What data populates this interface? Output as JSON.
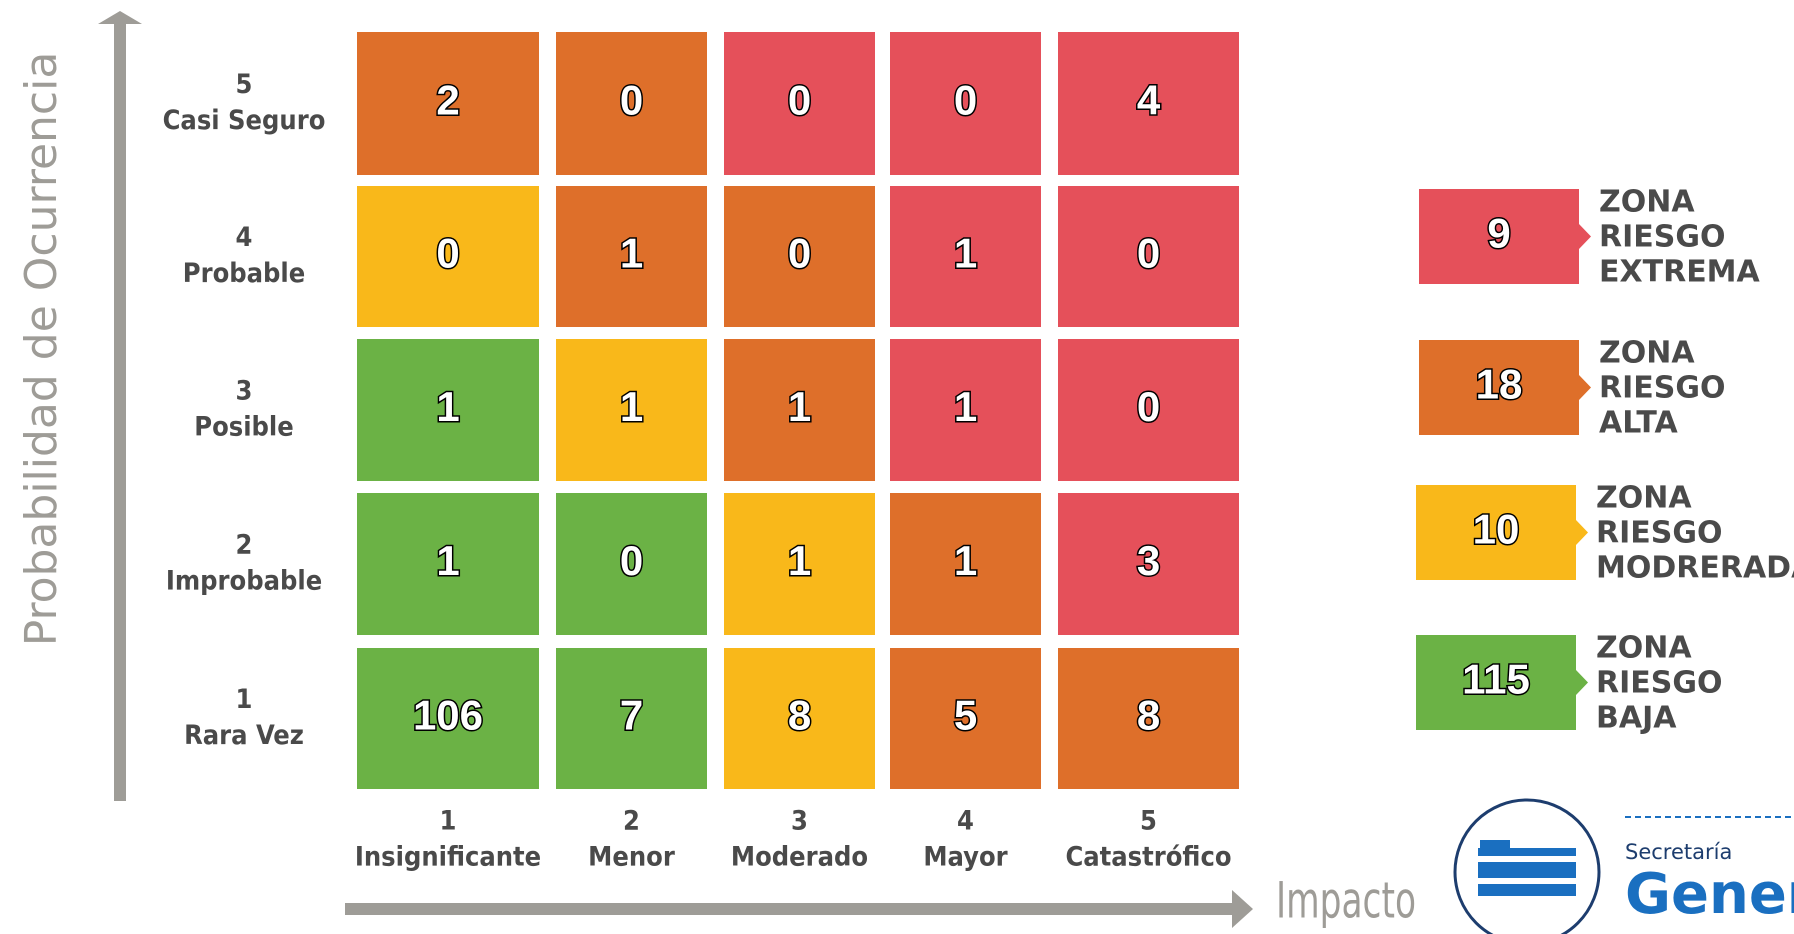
{
  "y_axis_label": "Probabilidad de Ocurrencia",
  "x_axis_label": "Impacto",
  "rows": [
    {
      "number": "5",
      "name": "Casi Seguro",
      "cells": [
        {
          "value": 2,
          "color": "#de6f2a"
        },
        {
          "value": 0,
          "color": "#de6f2a"
        },
        {
          "value": 0,
          "color": "#e5505a"
        },
        {
          "value": 0,
          "color": "#e5505a"
        },
        {
          "value": 4,
          "color": "#e5505a"
        }
      ]
    },
    {
      "number": "4",
      "name": "Probable",
      "cells": [
        {
          "value": 0,
          "color": "#f9b81a"
        },
        {
          "value": 1,
          "color": "#de6f2a"
        },
        {
          "value": 0,
          "color": "#de6f2a"
        },
        {
          "value": 1,
          "color": "#e5505a"
        },
        {
          "value": 0,
          "color": "#e5505a"
        }
      ]
    },
    {
      "number": "3",
      "name": "Posible",
      "cells": [
        {
          "value": 1,
          "color": "#6bb245"
        },
        {
          "value": 1,
          "color": "#f9b81a"
        },
        {
          "value": 1,
          "color": "#de6f2a"
        },
        {
          "value": 1,
          "color": "#e5505a"
        },
        {
          "value": 0,
          "color": "#e5505a"
        }
      ]
    },
    {
      "number": "2",
      "name": "Improbable",
      "cells": [
        {
          "value": 1,
          "color": "#6bb245"
        },
        {
          "value": 0,
          "color": "#6bb245"
        },
        {
          "value": 1,
          "color": "#f9b81a"
        },
        {
          "value": 1,
          "color": "#de6f2a"
        },
        {
          "value": 3,
          "color": "#e5505a"
        }
      ]
    },
    {
      "number": "1",
      "name": "Rara Vez",
      "cells": [
        {
          "value": 106,
          "color": "#6bb245"
        },
        {
          "value": 7,
          "color": "#6bb245"
        },
        {
          "value": 8,
          "color": "#f9b81a"
        },
        {
          "value": 5,
          "color": "#de6f2a"
        },
        {
          "value": 8,
          "color": "#de6f2a"
        }
      ]
    }
  ],
  "columns": [
    {
      "number": "1",
      "name": "Insignificante"
    },
    {
      "number": "2",
      "name": "Menor"
    },
    {
      "number": "3",
      "name": "Moderado"
    },
    {
      "number": "4",
      "name": "Mayor"
    },
    {
      "number": "5",
      "name": "Catastrófico"
    }
  ],
  "legend": [
    {
      "value": 9,
      "color": "#e5505a",
      "label": [
        "ZONA",
        "RIESGO",
        "EXTREMA"
      ]
    },
    {
      "value": 18,
      "color": "#de6f2a",
      "label": [
        "ZONA",
        "RIESGO",
        "ALTA"
      ]
    },
    {
      "value": 10,
      "color": "#f9b81a",
      "label": [
        "ZONA",
        "RIESGO",
        "MODRERADA"
      ]
    },
    {
      "value": 115,
      "color": "#6bb245",
      "label": [
        "ZONA",
        "RIESGO",
        "BAJA"
      ]
    }
  ],
  "logo": {
    "line1": "Secretaría",
    "line2": "Gener"
  }
}
